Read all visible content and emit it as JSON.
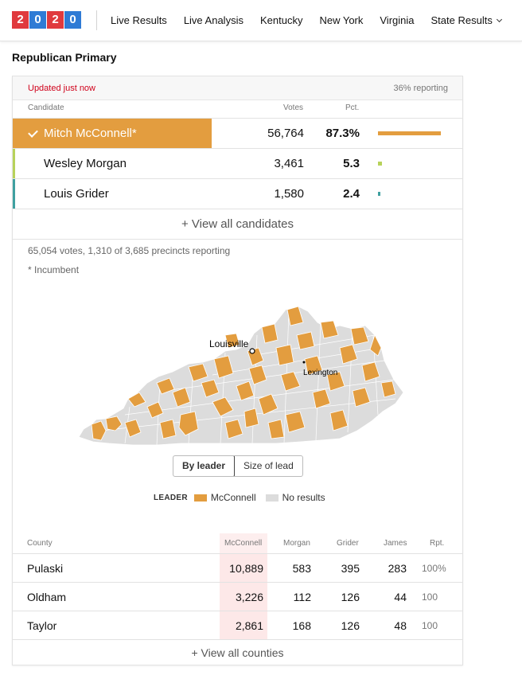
{
  "nav": {
    "logo_digits": [
      "2",
      "0",
      "2",
      "0"
    ],
    "links": [
      "Live Results",
      "Live Analysis",
      "Kentucky",
      "New York",
      "Virginia",
      "State Results"
    ]
  },
  "race": {
    "title": "Republican Primary"
  },
  "card": {
    "updated": "Updated just now",
    "reporting": "36% reporting",
    "headers": {
      "candidate": "Candidate",
      "votes": "Votes",
      "pct": "Pct."
    },
    "candidates": [
      {
        "name": "Mitch McConnell*",
        "votes": "56,764",
        "pct": "87.3%",
        "pct_value": 87.3,
        "color": "#e39d3f",
        "winner": true
      },
      {
        "name": "Wesley Morgan",
        "votes": "3,461",
        "pct": "5.3",
        "pct_value": 5.3,
        "color": "#b7d25a",
        "winner": false
      },
      {
        "name": "Louis Grider",
        "votes": "1,580",
        "pct": "2.4",
        "pct_value": 2.4,
        "color": "#3fa0a0",
        "winner": false
      }
    ],
    "view_all_candidates": "+ View all candidates",
    "summary": "65,054 votes, 1,310 of 3,685 precincts reporting",
    "incumbent_note": "* Incumbent"
  },
  "map": {
    "cities": [
      {
        "name": "Louisville"
      },
      {
        "name": "Lexington"
      }
    ],
    "toggle": [
      "By leader",
      "Size of lead"
    ],
    "legend_title": "LEADER",
    "legend": [
      {
        "label": "McConnell",
        "color": "#e39d3f"
      },
      {
        "label": "No results",
        "color": "#dcdcdc"
      }
    ]
  },
  "counties": {
    "headers": [
      "County",
      "McConnell",
      "Morgan",
      "Grider",
      "James",
      "Rpt."
    ],
    "rows": [
      {
        "county": "Pulaski",
        "mcconnell": "10,889",
        "morgan": "583",
        "grider": "395",
        "james": "283",
        "rpt": "100%"
      },
      {
        "county": "Oldham",
        "mcconnell": "3,226",
        "morgan": "112",
        "grider": "126",
        "james": "44",
        "rpt": "100"
      },
      {
        "county": "Taylor",
        "mcconnell": "2,861",
        "morgan": "168",
        "grider": "126",
        "james": "48",
        "rpt": "100"
      }
    ],
    "view_all": "+ View all counties"
  },
  "colors": {
    "accent": "#e39d3f",
    "updated_red": "#d0021b",
    "logo_red": "#e03a3e",
    "logo_blue": "#2f7bd5"
  }
}
